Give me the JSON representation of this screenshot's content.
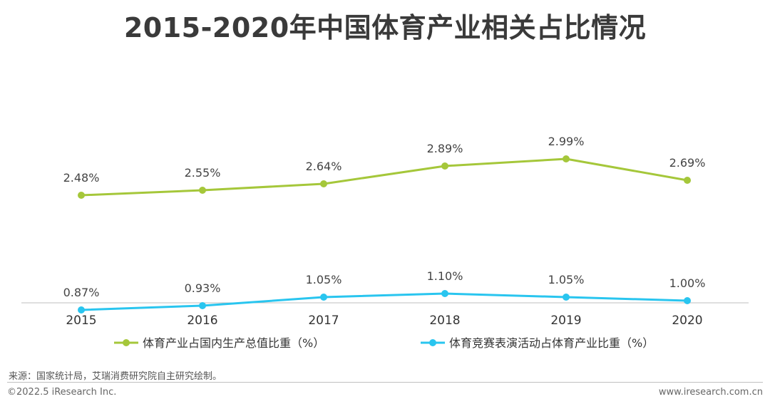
{
  "title": "2015-2020年中国体育产业相关占比情况",
  "source": "来源：国家统计局，艾瑞消费研究院自主研究绘制。",
  "copyright": "©2022.5 iResearch Inc.",
  "website": "www.iresearch.com.cn",
  "chart_data": {
    "type": "line",
    "categories": [
      "2015",
      "2016",
      "2017",
      "2018",
      "2019",
      "2020"
    ],
    "series": [
      {
        "name": "体育产业占国内生产总值比重（%）",
        "values": [
          2.48,
          2.55,
          2.64,
          2.89,
          2.99,
          2.69
        ],
        "labels": [
          "2.48%",
          "2.55%",
          "2.64%",
          "2.89%",
          "2.99%",
          "2.69%"
        ],
        "color": "#a5c73a"
      },
      {
        "name": "体育竞赛表演活动占体育产业比重（%）",
        "values": [
          0.87,
          0.93,
          1.05,
          1.1,
          1.05,
          1.0
        ],
        "labels": [
          "0.87%",
          "0.93%",
          "1.05%",
          "1.10%",
          "1.05%",
          "1.00%"
        ],
        "color": "#29c5ef"
      }
    ],
    "legend_position": "bottom",
    "grid": false
  }
}
